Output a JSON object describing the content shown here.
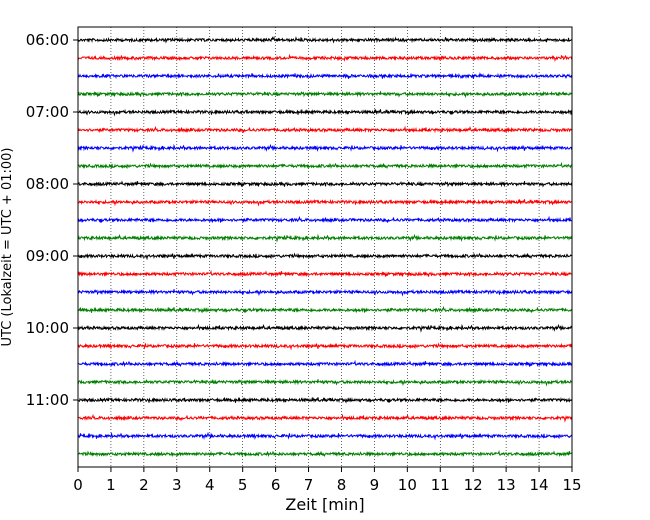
{
  "chart_data": {
    "type": "line",
    "title": "",
    "xlabel": "Zeit  [min]",
    "ylabel": "UTC (Lokalzeit = UTC + 01:00)",
    "xlim": [
      0,
      15
    ],
    "x_ticks": [
      0,
      1,
      2,
      3,
      4,
      5,
      6,
      7,
      8,
      9,
      10,
      11,
      12,
      13,
      14,
      15
    ],
    "x_tick_labels": [
      "0",
      "1",
      "2",
      "3",
      "4",
      "5",
      "6",
      "7",
      "8",
      "9",
      "10",
      "11",
      "12",
      "13",
      "14",
      "15"
    ],
    "y_ticks": [
      "06:00",
      "07:00",
      "08:00",
      "09:00",
      "10:00",
      "11:00"
    ],
    "grid": "vertical dotted at each minute",
    "legend": "none",
    "traces": [
      {
        "start": "06:00",
        "color": "#000000"
      },
      {
        "start": "06:15",
        "color": "#ff0000"
      },
      {
        "start": "06:30",
        "color": "#0000ff"
      },
      {
        "start": "06:45",
        "color": "#008000"
      },
      {
        "start": "07:00",
        "color": "#000000"
      },
      {
        "start": "07:15",
        "color": "#ff0000"
      },
      {
        "start": "07:30",
        "color": "#0000ff"
      },
      {
        "start": "07:45",
        "color": "#008000"
      },
      {
        "start": "08:00",
        "color": "#000000"
      },
      {
        "start": "08:15",
        "color": "#ff0000"
      },
      {
        "start": "08:30",
        "color": "#0000ff"
      },
      {
        "start": "08:45",
        "color": "#008000"
      },
      {
        "start": "09:00",
        "color": "#000000"
      },
      {
        "start": "09:15",
        "color": "#ff0000"
      },
      {
        "start": "09:30",
        "color": "#0000ff"
      },
      {
        "start": "09:45",
        "color": "#008000"
      },
      {
        "start": "10:00",
        "color": "#000000"
      },
      {
        "start": "10:15",
        "color": "#ff0000"
      },
      {
        "start": "10:30",
        "color": "#0000ff"
      },
      {
        "start": "10:45",
        "color": "#008000"
      },
      {
        "start": "11:00",
        "color": "#000000"
      },
      {
        "start": "11:15",
        "color": "#ff0000"
      },
      {
        "start": "11:30",
        "color": "#0000ff"
      },
      {
        "start": "11:45",
        "color": "#008000"
      }
    ]
  }
}
